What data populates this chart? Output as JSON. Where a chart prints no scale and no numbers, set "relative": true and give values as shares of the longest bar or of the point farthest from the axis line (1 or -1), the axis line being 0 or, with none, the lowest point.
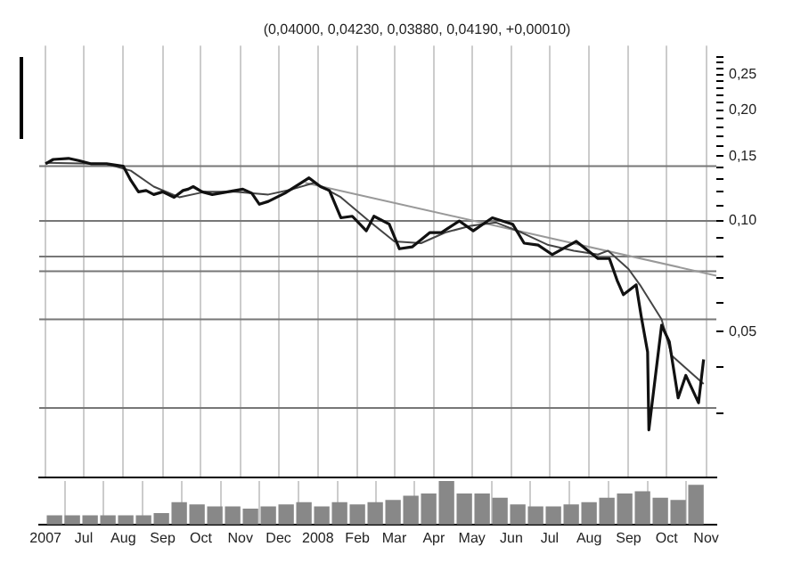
{
  "chart_data": [
    {
      "type": "line",
      "title": "(0,04000, 0,04230, 0,03880, 0,04190, +0,00010)",
      "log": "y",
      "grid": "x",
      "tick_labels": "y",
      "xlim": [
        "2007-05-27",
        "2008-11-09"
      ],
      "xticks": [
        {
          "value": "2007-06",
          "label": null
        },
        {
          "value": "2007-07",
          "label": null
        },
        {
          "value": "2007-08",
          "label": null
        },
        {
          "value": "2007-09",
          "label": null
        },
        {
          "value": "2007-10",
          "label": null
        },
        {
          "value": "2007-11",
          "label": null
        },
        {
          "value": "2007-12",
          "label": null
        },
        {
          "value": "2008-01",
          "label": null
        },
        {
          "value": "2008-02",
          "label": null
        },
        {
          "value": "2008-03",
          "label": null
        },
        {
          "value": "2008-04",
          "label": null
        },
        {
          "value": "2008-05",
          "label": null
        },
        {
          "value": "2008-06",
          "label": null
        },
        {
          "value": "2008-07",
          "label": null
        },
        {
          "value": "2008-08",
          "label": null
        },
        {
          "value": "2008-09",
          "label": null
        },
        {
          "value": "2008-10",
          "label": null
        },
        {
          "value": "2008-11",
          "label": null
        }
      ],
      "ylim": [
        0.02,
        0.3
      ],
      "yticks": [
        {
          "value": 0.03,
          "label": null
        },
        {
          "value": 0.04,
          "label": null
        },
        {
          "value": 0.05,
          "label": "0,05"
        },
        {
          "value": 0.06,
          "label": null
        },
        {
          "value": 0.07,
          "label": null
        },
        {
          "value": 0.08,
          "label": null
        },
        {
          "value": 0.09,
          "label": null
        },
        {
          "value": 0.1,
          "label": "0,10"
        },
        {
          "value": 0.11,
          "label": null
        },
        {
          "value": 0.12,
          "label": null
        },
        {
          "value": 0.13,
          "label": null
        },
        {
          "value": 0.14,
          "label": null
        },
        {
          "value": 0.15,
          "label": "0,15"
        },
        {
          "value": 0.16,
          "label": null
        },
        {
          "value": 0.17,
          "label": null
        },
        {
          "value": 0.18,
          "label": null
        },
        {
          "value": 0.19,
          "label": null
        },
        {
          "value": 0.2,
          "label": "0,20"
        },
        {
          "value": 0.21,
          "label": null
        },
        {
          "value": 0.22,
          "label": null
        },
        {
          "value": 0.23,
          "label": null
        },
        {
          "value": 0.24,
          "label": null
        },
        {
          "value": 0.25,
          "label": "0,25"
        },
        {
          "value": 0.26,
          "label": null
        },
        {
          "value": 0.27,
          "label": null
        },
        {
          "value": 0.28,
          "label": null
        }
      ],
      "ref_lines": [
        {
          "axis": "y",
          "value": 0.141,
          "color": "#777777"
        },
        {
          "axis": "y",
          "value": 0.1,
          "color": "#777777"
        },
        {
          "axis": "y",
          "value": 0.08,
          "color": "#777777"
        },
        {
          "axis": "y",
          "value": 0.073,
          "color": "#777777"
        },
        {
          "axis": "y",
          "value": 0.054,
          "color": "#777777"
        },
        {
          "axis": "y",
          "value": 0.031,
          "color": "#777777"
        }
      ],
      "series": [
        {
          "color": "#111111",
          "x": [
            "2007-06-01",
            "2007-06-07",
            "2007-06-19",
            "2007-06-27",
            "2007-07-07",
            "2007-07-19",
            "2007-08-01",
            "2007-08-07",
            "2007-08-13",
            "2007-08-19",
            "2007-08-25",
            "2007-09-01",
            "2007-09-10",
            "2007-09-17",
            "2007-09-21",
            "2007-09-25",
            "2007-10-02",
            "2007-10-10",
            "2007-10-22",
            "2007-11-03",
            "2007-11-10",
            "2007-11-16",
            "2007-11-23",
            "2007-12-06",
            "2007-12-19",
            "2007-12-25",
            "2008-01-03",
            "2008-01-10",
            "2008-01-19",
            "2008-01-28",
            "2008-02-08",
            "2008-02-14",
            "2008-02-26",
            "2008-03-05",
            "2008-03-15",
            "2008-03-29",
            "2008-04-07",
            "2008-04-21",
            "2008-05-02",
            "2008-05-17",
            "2008-06-02",
            "2008-06-11",
            "2008-06-22",
            "2008-07-03",
            "2008-07-22",
            "2008-08-08",
            "2008-08-17",
            "2008-08-23",
            "2008-08-28",
            "2008-09-07",
            "2008-09-11",
            "2008-09-16",
            "2008-09-17",
            "2008-09-27",
            "2008-10-03",
            "2008-10-10",
            "2008-10-16",
            "2008-10-26",
            "2008-10-30"
          ],
          "values": [
            0.143,
            0.147,
            0.148,
            0.146,
            0.143,
            0.143,
            0.141,
            0.129,
            0.12,
            0.121,
            0.118,
            0.12,
            0.116,
            0.121,
            0.122,
            0.124,
            0.12,
            0.118,
            0.12,
            0.122,
            0.119,
            0.111,
            0.113,
            0.119,
            0.127,
            0.131,
            0.124,
            0.121,
            0.102,
            0.103,
            0.094,
            0.103,
            0.098,
            0.084,
            0.085,
            0.093,
            0.093,
            0.1,
            0.094,
            0.102,
            0.098,
            0.087,
            0.086,
            0.081,
            0.088,
            0.079,
            0.079,
            0.069,
            0.063,
            0.067,
            0.055,
            0.044,
            0.027,
            0.052,
            0.047,
            0.033,
            0.038,
            0.032,
            0.042
          ]
        },
        {
          "color": "#444444",
          "x": [
            "2007-06-01",
            "2007-07-19",
            "2007-08-07",
            "2007-08-25",
            "2007-09-14",
            "2007-10-04",
            "2007-10-28",
            "2007-11-23",
            "2007-12-12",
            "2007-12-29",
            "2008-01-19",
            "2008-02-10",
            "2008-03-01",
            "2008-03-22",
            "2008-04-10",
            "2008-04-30",
            "2008-05-20",
            "2008-06-09",
            "2008-06-30",
            "2008-07-20",
            "2008-08-08",
            "2008-08-16",
            "2008-09-01",
            "2008-09-10",
            "2008-09-27",
            "2008-10-05",
            "2008-10-30"
          ],
          "values": [
            0.144,
            0.143,
            0.137,
            0.124,
            0.116,
            0.12,
            0.12,
            0.118,
            0.122,
            0.127,
            0.116,
            0.1,
            0.088,
            0.087,
            0.093,
            0.097,
            0.099,
            0.093,
            0.086,
            0.083,
            0.081,
            0.083,
            0.074,
            0.067,
            0.054,
            0.043,
            0.036
          ]
        },
        {
          "color": "#999999",
          "x": [
            "2007-12-22",
            "2008-11-09"
          ],
          "values": [
            0.127,
            0.071
          ]
        }
      ]
    },
    {
      "type": "bar",
      "relative": true,
      "color": "#888888",
      "grid": "x",
      "tick_labels": "x",
      "xlim": [
        "2007-05-27",
        "2008-11-09"
      ],
      "xticks": [
        {
          "value": "2007-06",
          "label": "2007"
        },
        {
          "value": "2007-07",
          "label": "Jul"
        },
        {
          "value": "2007-08",
          "label": "Aug"
        },
        {
          "value": "2007-09",
          "label": "Sep"
        },
        {
          "value": "2007-10",
          "label": "Oct"
        },
        {
          "value": "2007-11",
          "label": "Nov"
        },
        {
          "value": "2007-12",
          "label": "Dec"
        },
        {
          "value": "2008-01",
          "label": "2008"
        },
        {
          "value": "2008-02",
          "label": "Feb"
        },
        {
          "value": "2008-03",
          "label": "Mar"
        },
        {
          "value": "2008-04",
          "label": "Apr"
        },
        {
          "value": "2008-05",
          "label": "May"
        },
        {
          "value": "2008-06",
          "label": "Jun"
        },
        {
          "value": "2008-07",
          "label": "Jul"
        },
        {
          "value": "2008-08",
          "label": "Aug"
        },
        {
          "value": "2008-09",
          "label": "Sep"
        },
        {
          "value": "2008-10",
          "label": "Oct"
        },
        {
          "value": "2008-11",
          "label": "Nov"
        }
      ],
      "x": [
        "2007-06-08",
        "2007-06-22",
        "2007-07-06",
        "2007-07-20",
        "2007-08-03",
        "2007-08-17",
        "2007-08-31",
        "2007-09-14",
        "2007-09-28",
        "2007-10-12",
        "2007-10-26",
        "2007-11-09",
        "2007-11-23",
        "2007-12-07",
        "2007-12-21",
        "2008-01-04",
        "2008-01-18",
        "2008-02-01",
        "2008-02-15",
        "2008-02-29",
        "2008-03-14",
        "2008-03-28",
        "2008-04-11",
        "2008-04-25",
        "2008-05-09",
        "2008-05-23",
        "2008-06-06",
        "2008-06-20",
        "2008-07-04",
        "2008-07-18",
        "2008-08-01",
        "2008-08-15",
        "2008-08-29",
        "2008-09-12",
        "2008-09-26",
        "2008-10-10",
        "2008-10-24"
      ],
      "values": [
        0.2,
        0.2,
        0.2,
        0.2,
        0.2,
        0.2,
        0.25,
        0.5,
        0.45,
        0.4,
        0.4,
        0.35,
        0.4,
        0.45,
        0.5,
        0.4,
        0.5,
        0.45,
        0.5,
        0.55,
        0.65,
        0.7,
        1,
        0.7,
        0.7,
        0.6,
        0.45,
        0.4,
        0.4,
        0.45,
        0.5,
        0.6,
        0.7,
        0.75,
        0.6,
        0.55,
        0.9
      ]
    }
  ]
}
